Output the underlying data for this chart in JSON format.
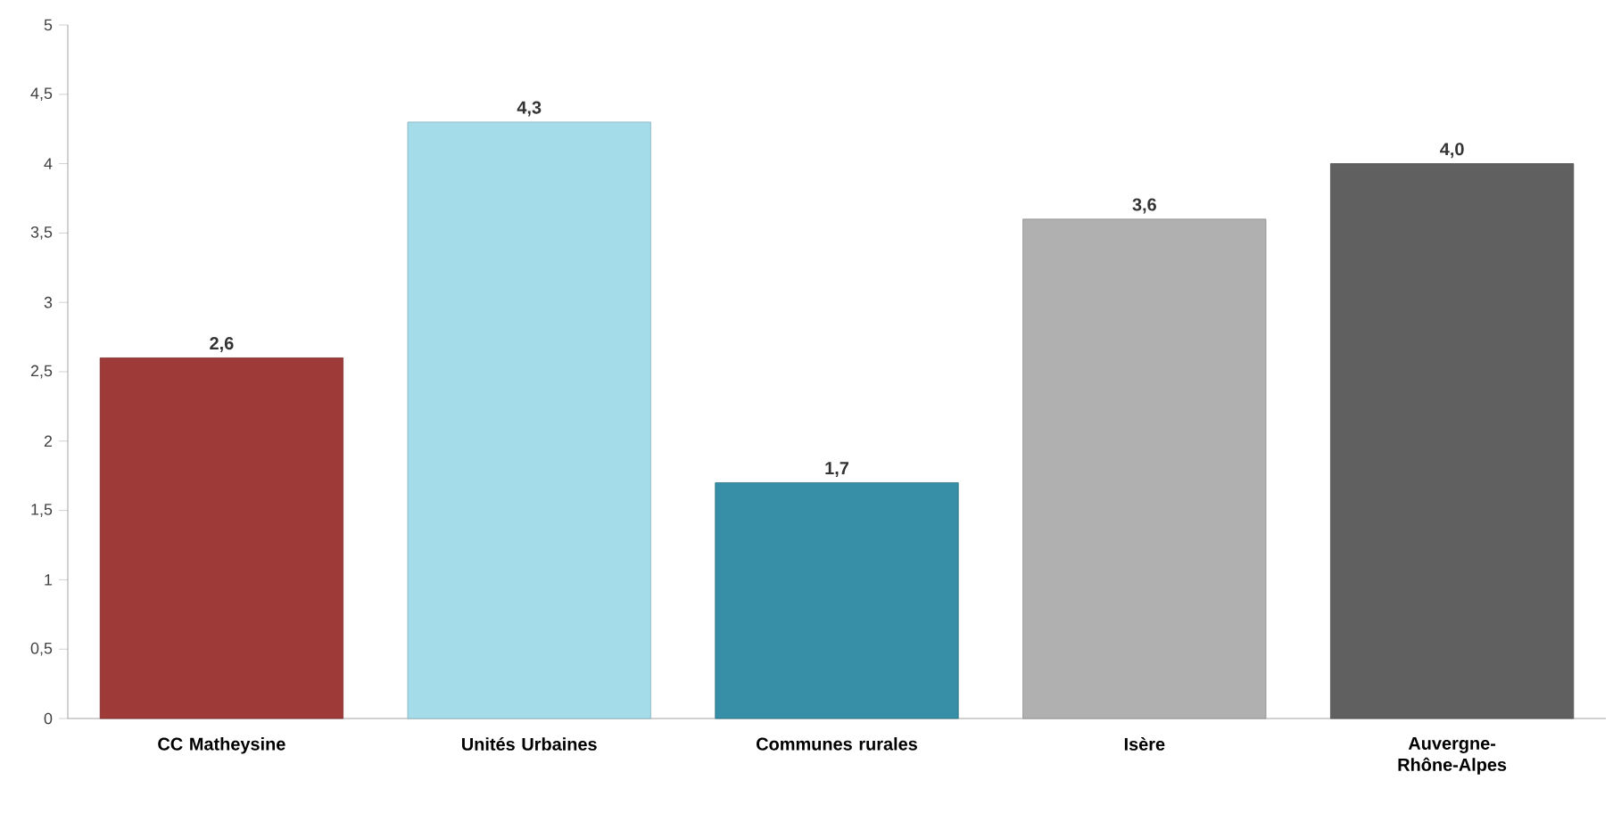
{
  "chart_data": {
    "type": "bar",
    "categories": [
      "CC Matheysine",
      "Unités Urbaines",
      "Communes rurales",
      "Isère",
      "Auvergne-Rhône-Alpes"
    ],
    "values": [
      2.6,
      4.3,
      1.7,
      3.6,
      4.0
    ],
    "colors": [
      "#9e3a38",
      "#a5dcea",
      "#368fa6",
      "#b0b0b0",
      "#606060"
    ],
    "value_labels": [
      "2,6",
      "4,3",
      "1,7",
      "3,6",
      "4,0"
    ],
    "ylim": [
      0,
      5
    ],
    "yticks": [
      0,
      {
        "value": 0.5,
        "label": "0,5"
      },
      1,
      {
        "value": 1.5,
        "label": "1,5"
      },
      2,
      {
        "value": 2.5,
        "label": "2,5"
      },
      3,
      {
        "value": 3.5,
        "label": "3,5"
      },
      4,
      {
        "value": 4.5,
        "label": "4,5"
      },
      5
    ],
    "grid": false
  }
}
